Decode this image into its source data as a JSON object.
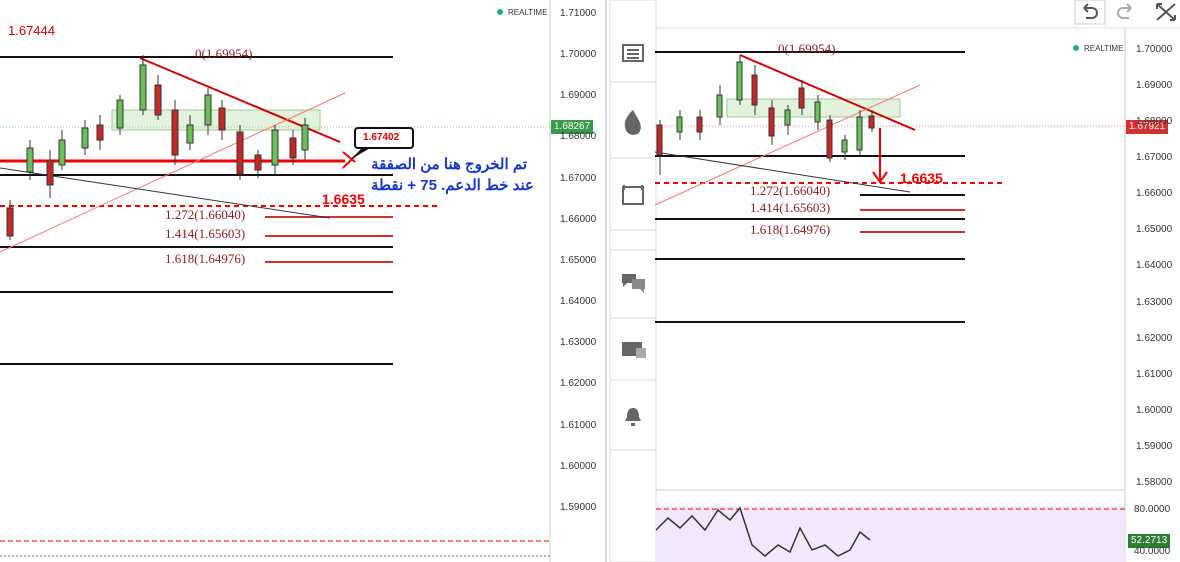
{
  "left_chart": {
    "realtime": "REALTIME",
    "last_price_label": "1.67444",
    "price_axis": [
      "1.71000",
      "1.70000",
      "1.69000",
      "1.68000",
      "1.67000",
      "1.66000",
      "1.65000",
      "1.64000",
      "1.63000",
      "1.62000",
      "1.61000",
      "1.60000",
      "1.59000"
    ],
    "current_price": "1.68267",
    "annotations": {
      "fib_0": "0(1.69954)",
      "fib_1272": "1.272(1.66040)",
      "fib_1414": "1.414(1.65603)",
      "fib_1618": "1.618(1.64976)",
      "level": "1.6635",
      "callout": "1.67402",
      "note_line1": "تم الخروج هنا من الصفقة",
      "note_line2": "عند خط الدعم. 75 + نقطة"
    }
  },
  "right_chart": {
    "realtime": "REALTIME",
    "price_axis": [
      "1.70000",
      "1.69000",
      "1.68000",
      "1.67000",
      "1.66000",
      "1.65000",
      "1.64000",
      "1.63000",
      "1.62000",
      "1.61000",
      "1.60000",
      "1.59000",
      "1.58000"
    ],
    "current_price": "1.67921",
    "annotations": {
      "fib_0": "0(1.69954)",
      "level": "1.6635",
      "fib_1272": "1.272(1.66040)",
      "fib_1414": "1.414(1.65603)",
      "fib_1618": "1.618(1.64976)"
    },
    "oscillator_axis": [
      "80.0000",
      "40.0000"
    ],
    "oscillator_value": "52.2713"
  }
}
